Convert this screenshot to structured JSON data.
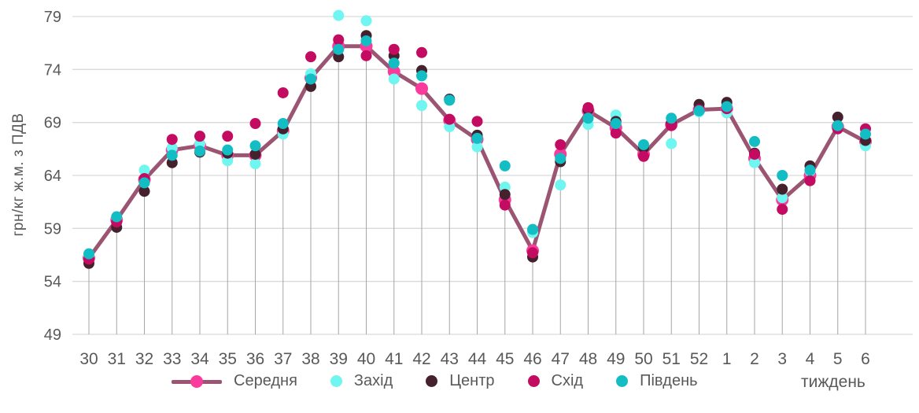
{
  "chart": {
    "y_axis_title": "грн/кг ж.м. з ПДВ",
    "x_axis_title": "тиждень"
  },
  "chart_data": {
    "type": "line",
    "title": "",
    "xlabel": "тиждень",
    "ylabel": "грн/кг ж.м. з ПДВ",
    "ylim": [
      49,
      79
    ],
    "y_ticks": [
      49,
      54,
      59,
      64,
      69,
      74,
      79
    ],
    "grid": {
      "horizontal": true,
      "vertical_drop_lines": true
    },
    "legend_position": "bottom",
    "categories": [
      "30",
      "31",
      "32",
      "33",
      "34",
      "35",
      "36",
      "37",
      "38",
      "39",
      "40",
      "41",
      "42",
      "43",
      "44",
      "45",
      "46",
      "47",
      "48",
      "49",
      "50",
      "51",
      "52",
      "1",
      "2",
      "3",
      "4",
      "5",
      "6"
    ],
    "series": [
      {
        "name": "Середня",
        "style": "line-with-markers",
        "line_color": "#9B5572",
        "marker_color": "#FA3B9C",
        "values": [
          56.2,
          59.8,
          63.6,
          66.4,
          66.8,
          65.9,
          65.9,
          68.2,
          73.2,
          76.2,
          76.2,
          73.8,
          72.2,
          69.2,
          67.4,
          61.7,
          56.9,
          66.0,
          70.1,
          68.5,
          66.0,
          68.8,
          70.2,
          70.3,
          65.6,
          61.7,
          64.0,
          68.6,
          67.2
        ]
      },
      {
        "name": "Захід",
        "style": "scatter",
        "marker_color": "#6FF6F0",
        "values": [
          56.4,
          60.0,
          64.5,
          66.6,
          67.0,
          65.4,
          65.1,
          67.9,
          73.6,
          79.1,
          78.6,
          73.1,
          70.6,
          68.6,
          66.7,
          62.9,
          58.6,
          63.1,
          68.8,
          69.7,
          66.6,
          67.0,
          70.0,
          69.9,
          65.2,
          61.9,
          64.4,
          68.5,
          66.8
        ]
      },
      {
        "name": "Центр",
        "style": "scatter",
        "marker_color": "#45212E",
        "values": [
          55.7,
          59.1,
          62.5,
          65.2,
          66.2,
          66.1,
          66.0,
          68.4,
          72.4,
          75.2,
          77.2,
          75.3,
          73.9,
          71.2,
          67.8,
          62.2,
          56.3,
          65.3,
          70.2,
          69.1,
          66.6,
          68.9,
          70.7,
          70.9,
          66.1,
          62.7,
          64.9,
          69.5,
          67.3
        ]
      },
      {
        "name": "Схід",
        "style": "scatter",
        "marker_color": "#C30B61",
        "values": [
          56.1,
          59.6,
          63.7,
          67.4,
          67.7,
          67.7,
          68.9,
          71.8,
          75.2,
          76.8,
          75.3,
          75.9,
          75.6,
          69.3,
          69.1,
          61.2,
          56.7,
          66.9,
          70.4,
          68.0,
          65.8,
          68.7,
          70.2,
          70.3,
          66.0,
          60.8,
          63.5,
          68.4,
          68.4
        ]
      },
      {
        "name": "Південь",
        "style": "scatter",
        "marker_color": "#12BDC4",
        "values": [
          56.6,
          60.1,
          63.3,
          65.9,
          66.3,
          66.4,
          66.8,
          68.9,
          73.1,
          75.9,
          76.7,
          74.6,
          73.4,
          71.1,
          67.5,
          64.9,
          58.9,
          65.6,
          69.4,
          68.9,
          66.9,
          69.4,
          70.1,
          70.5,
          67.2,
          64.0,
          64.5,
          68.7,
          67.9
        ]
      }
    ],
    "colors": {
      "gridline": "#D9D9D9",
      "drop_line": "#A6A6A6",
      "text": "#595959",
      "background": "#FFFFFF"
    }
  }
}
